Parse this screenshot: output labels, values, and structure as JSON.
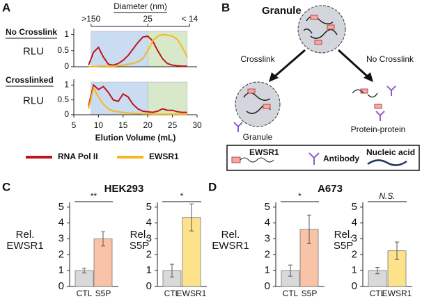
{
  "chart_data": [
    {
      "type": "line",
      "panel": "A",
      "title": "No Crosslink",
      "ylabel": "RLU",
      "top_axis": {
        "title": "Diameter (nm)",
        "ticks": [
          {
            "value": 8.5,
            "label": ">150"
          },
          {
            "value": 20,
            "label": "25"
          },
          {
            "value": 28.5,
            "label": "< 14"
          }
        ]
      },
      "regions": [
        {
          "start": 8.5,
          "end": 20,
          "color": "#c9dcf2"
        },
        {
          "start": 20,
          "end": 28,
          "color": "#d8e9cb"
        }
      ],
      "x": [
        8,
        9,
        10,
        11,
        12,
        13,
        14,
        15,
        16,
        17,
        18,
        19,
        20,
        21,
        22,
        23,
        24,
        25,
        26,
        27,
        28
      ],
      "series": [
        {
          "name": "RNA Pol II",
          "color": "#c0141b",
          "values": [
            0.05,
            0.45,
            0.6,
            0.3,
            0.08,
            0.05,
            0.1,
            0.2,
            0.35,
            0.55,
            0.75,
            0.92,
            0.95,
            0.8,
            0.5,
            0.25,
            0.1,
            0.05,
            0.03,
            0.02,
            0.02
          ]
        },
        {
          "name": "EWSR1",
          "color": "#f6b81c",
          "values": [
            0,
            0,
            0.02,
            0.02,
            0.02,
            0.02,
            0.03,
            0.05,
            0.08,
            0.1,
            0.15,
            0.25,
            0.5,
            0.8,
            0.95,
            1.0,
            0.98,
            0.95,
            0.85,
            0.6,
            0.3
          ]
        }
      ],
      "xlim": [
        5,
        30
      ],
      "ylim": [
        0,
        1.1
      ],
      "yticks": [
        0,
        0.5,
        1
      ]
    },
    {
      "type": "line",
      "title": "Crosslinked",
      "ylabel": "RLU",
      "xlabel": "Elution Volume (mL)",
      "regions": [
        {
          "start": 8.5,
          "end": 20,
          "color": "#c9dcf2"
        },
        {
          "start": 20,
          "end": 28,
          "color": "#d8e9cb"
        }
      ],
      "x": [
        8,
        9,
        10,
        11,
        12,
        13,
        14,
        15,
        16,
        17,
        18,
        19,
        20,
        21,
        22,
        23,
        24,
        25,
        26,
        27,
        28
      ],
      "series": [
        {
          "color": "#c0141b",
          "values": [
            0.3,
            1.0,
            0.85,
            0.95,
            0.75,
            0.5,
            0.45,
            0.7,
            0.6,
            0.35,
            0.2,
            0.12,
            0.1,
            0.08,
            0.12,
            0.2,
            0.15,
            0.15,
            0.1,
            0.08,
            0.08
          ]
        },
        {
          "color": "#f6b81c",
          "values": [
            0.2,
            0.9,
            0.6,
            0.35,
            0.2,
            0.12,
            0.1,
            0.08,
            0.06,
            0.05,
            0.04,
            0.03,
            0.03,
            0.02,
            0.02,
            0.02,
            0.02,
            0.02,
            0.02,
            0.02,
            0.02
          ]
        }
      ],
      "xlim": [
        5,
        30
      ],
      "ylim": [
        0,
        1.1
      ],
      "yticks": [
        0,
        0.5,
        1
      ],
      "xticks": [
        5,
        10,
        15,
        20,
        25,
        30
      ]
    },
    {
      "type": "bar",
      "panel": "C",
      "title": "HEK293",
      "ylabel": [
        "Rel.",
        "EWSR1"
      ],
      "categories": [
        "CTL",
        "S5P"
      ],
      "values": [
        1.0,
        3.0
      ],
      "errors": [
        0.15,
        0.45
      ],
      "colors": [
        "#d9d9d9",
        "#f8c3a6"
      ],
      "significance": "**",
      "ylim": [
        0,
        5.3
      ],
      "yticks": [
        0,
        1,
        2,
        3,
        4,
        5
      ]
    },
    {
      "type": "bar",
      "ylabel": [
        "Rel.",
        "S5P"
      ],
      "categories": [
        "CTL",
        "EWSR1"
      ],
      "values": [
        1.0,
        4.35
      ],
      "errors": [
        0.4,
        0.85
      ],
      "colors": [
        "#d9d9d9",
        "#fde28c"
      ],
      "significance": "*",
      "ylim": [
        0,
        5.3
      ],
      "yticks": [
        0,
        1,
        2,
        3,
        4,
        5
      ]
    },
    {
      "type": "bar",
      "panel": "D",
      "title": "A673",
      "ylabel": [
        "Rel.",
        "EWSR1"
      ],
      "categories": [
        "CTL",
        "S5P"
      ],
      "values": [
        1.0,
        3.6
      ],
      "errors": [
        0.35,
        0.9
      ],
      "colors": [
        "#d9d9d9",
        "#f8c3a6"
      ],
      "significance": "*",
      "ylim": [
        0,
        5.3
      ],
      "yticks": [
        0,
        1,
        2,
        3,
        4,
        5
      ]
    },
    {
      "type": "bar",
      "ylabel": [
        "Rel.",
        "S5P"
      ],
      "categories": [
        "CTL",
        "EWSR1"
      ],
      "values": [
        1.0,
        2.25
      ],
      "errors": [
        0.2,
        0.55
      ],
      "colors": [
        "#d9d9d9",
        "#fde28c"
      ],
      "significance": "N.S.",
      "significance_italic": true,
      "ylim": [
        0,
        5.3
      ],
      "yticks": [
        0,
        1,
        2,
        3,
        4,
        5
      ]
    }
  ],
  "diagram": {
    "letter": "B",
    "title": "Granule",
    "left_arrow": "Crosslink",
    "right_arrow": "No Crosslink",
    "left_result": "Granule",
    "right_result": "Protein-protein",
    "legend": [
      "EWSR1",
      "Antibody",
      "Nucleic acid"
    ]
  }
}
